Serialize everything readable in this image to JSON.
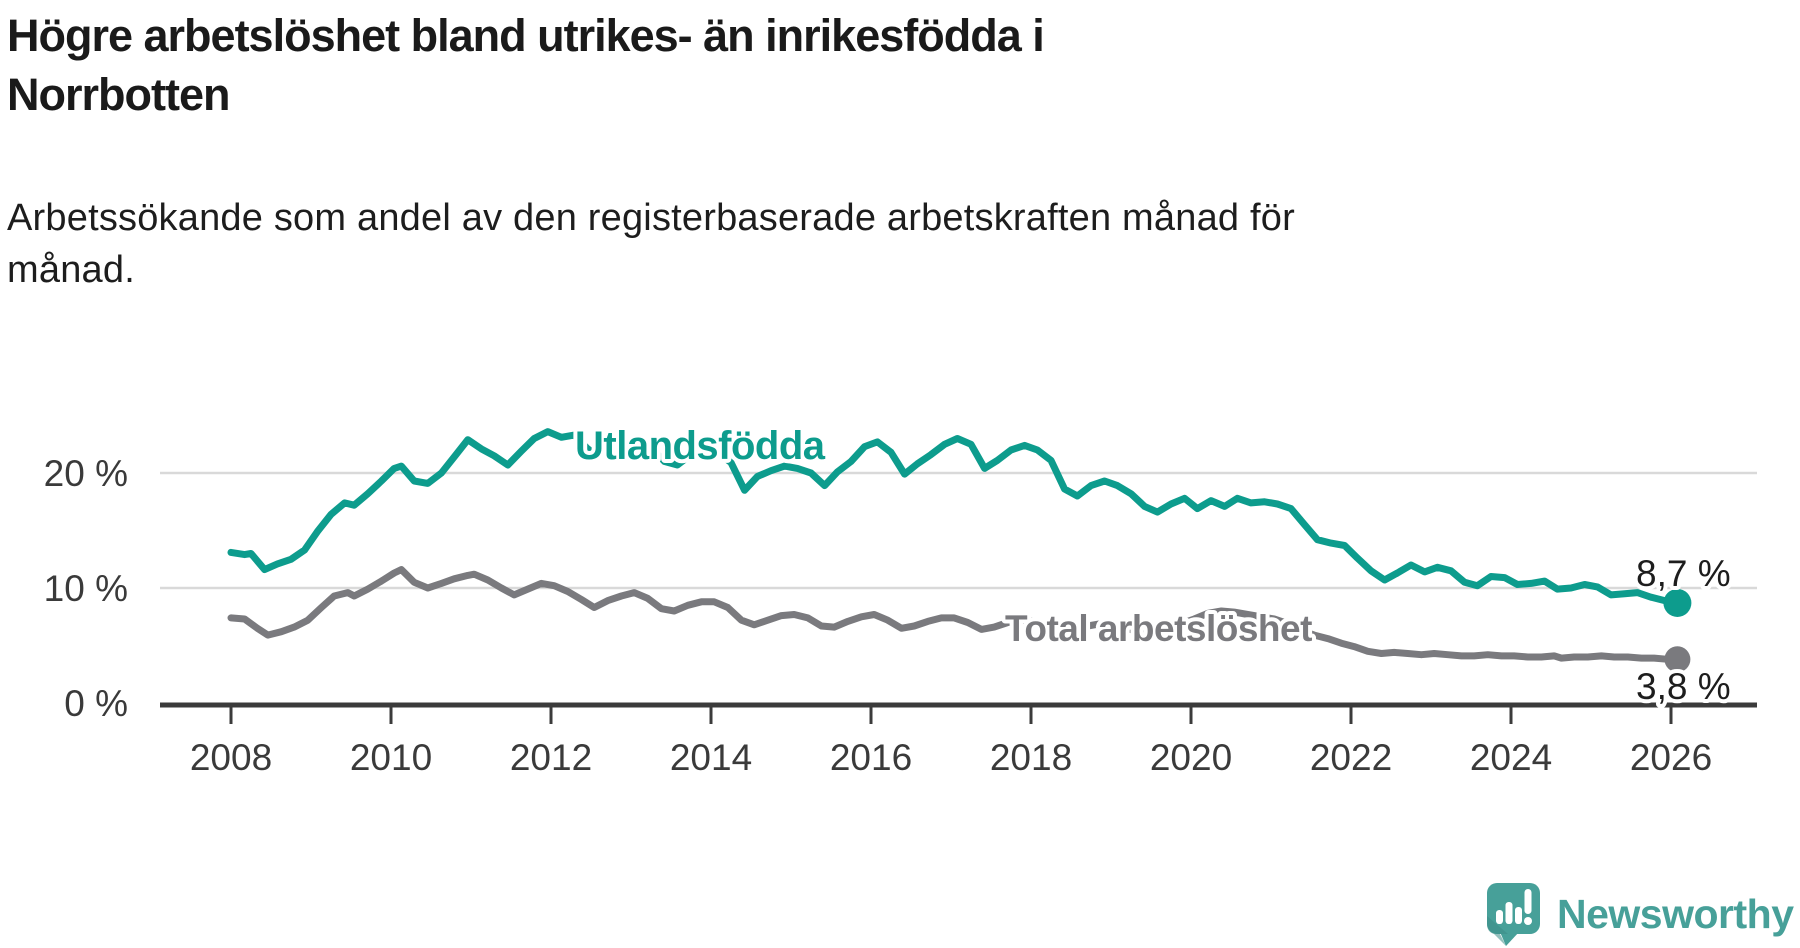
{
  "title": "Högre arbetslöshet bland utrikes- än inrikesfödda i Norrbotten",
  "title_lines": [
    "Högre arbetslöshet bland utrikes- än inrikesfödda i",
    "Norrbotten"
  ],
  "subtitle": "Arbetssökande som andel av den registerbaserade arbetskraften månad för månad.",
  "subtitle_lines": [
    "Arbetssökande som andel av den registerbaserade arbetskraften månad för",
    "månad."
  ],
  "branding": {
    "name": "Newsworthy",
    "logo_icon": "bar-chart-speech-bubble",
    "logo_color": "#47a099",
    "logo_shade_color": "#3d8c86"
  },
  "colors": {
    "grid": "#d9d9d9",
    "axis": "#3b3b3b",
    "axis_text": "#3a3a3a",
    "text": "#1d1d1d"
  },
  "chart_data": {
    "type": "line",
    "title": "Högre arbetslöshet bland utrikes- än inrikesfödda i Norrbotten",
    "xlabel": "",
    "ylabel": "",
    "unit": "%",
    "grid": "horizontal",
    "legend_position": "inline-labels",
    "xlim": [
      2007.1,
      2027.1
    ],
    "ylim": [
      0,
      30
    ],
    "x_ticks": [
      2008,
      2010,
      2012,
      2014,
      2016,
      2018,
      2020,
      2022,
      2024,
      2026
    ],
    "y_ticks": [
      {
        "v": 0,
        "label": "0 %"
      },
      {
        "v": 10,
        "label": "10 %"
      },
      {
        "v": 20,
        "label": "20 %"
      }
    ],
    "series": [
      {
        "id": "utlandsfodda",
        "name": "Utlandsfödda",
        "color": "#0d9c8d",
        "end_label": "8,7 %",
        "end_value": 8.7,
        "points": [
          [
            2008.0,
            13.1
          ],
          [
            2008.17,
            12.9
          ],
          [
            2008.25,
            13.0
          ],
          [
            2008.42,
            11.6
          ],
          [
            2008.58,
            12.1
          ],
          [
            2008.75,
            12.5
          ],
          [
            2008.92,
            13.3
          ],
          [
            2009.08,
            14.9
          ],
          [
            2009.25,
            16.4
          ],
          [
            2009.42,
            17.4
          ],
          [
            2009.54,
            17.2
          ],
          [
            2009.71,
            18.2
          ],
          [
            2009.88,
            19.3
          ],
          [
            2010.04,
            20.4
          ],
          [
            2010.13,
            20.6
          ],
          [
            2010.29,
            19.3
          ],
          [
            2010.46,
            19.1
          ],
          [
            2010.63,
            20.0
          ],
          [
            2010.79,
            21.4
          ],
          [
            2010.96,
            22.9
          ],
          [
            2011.13,
            22.1
          ],
          [
            2011.29,
            21.5
          ],
          [
            2011.46,
            20.7
          ],
          [
            2011.63,
            21.9
          ],
          [
            2011.79,
            23.0
          ],
          [
            2011.96,
            23.6
          ],
          [
            2012.13,
            23.1
          ],
          [
            2012.29,
            23.3
          ],
          [
            2012.46,
            22.1
          ],
          [
            2012.58,
            21.5
          ],
          [
            2012.75,
            22.2
          ],
          [
            2012.92,
            22.7
          ],
          [
            2013.08,
            22.7
          ],
          [
            2013.25,
            22.2
          ],
          [
            2013.42,
            21.0
          ],
          [
            2013.58,
            20.7
          ],
          [
            2013.75,
            21.6
          ],
          [
            2013.92,
            22.0
          ],
          [
            2014.08,
            21.8
          ],
          [
            2014.25,
            20.9
          ],
          [
            2014.42,
            18.5
          ],
          [
            2014.58,
            19.7
          ],
          [
            2014.75,
            20.2
          ],
          [
            2014.92,
            20.6
          ],
          [
            2015.08,
            20.4
          ],
          [
            2015.25,
            20.0
          ],
          [
            2015.42,
            18.9
          ],
          [
            2015.58,
            20.1
          ],
          [
            2015.75,
            21.0
          ],
          [
            2015.92,
            22.3
          ],
          [
            2016.08,
            22.7
          ],
          [
            2016.25,
            21.8
          ],
          [
            2016.42,
            19.9
          ],
          [
            2016.58,
            20.8
          ],
          [
            2016.75,
            21.6
          ],
          [
            2016.92,
            22.5
          ],
          [
            2017.08,
            23.0
          ],
          [
            2017.25,
            22.5
          ],
          [
            2017.42,
            20.4
          ],
          [
            2017.58,
            21.1
          ],
          [
            2017.75,
            22.0
          ],
          [
            2017.92,
            22.4
          ],
          [
            2018.08,
            22.0
          ],
          [
            2018.25,
            21.1
          ],
          [
            2018.42,
            18.6
          ],
          [
            2018.58,
            18.0
          ],
          [
            2018.75,
            18.9
          ],
          [
            2018.92,
            19.3
          ],
          [
            2019.08,
            18.9
          ],
          [
            2019.25,
            18.2
          ],
          [
            2019.42,
            17.1
          ],
          [
            2019.58,
            16.6
          ],
          [
            2019.75,
            17.3
          ],
          [
            2019.92,
            17.8
          ],
          [
            2020.08,
            16.9
          ],
          [
            2020.25,
            17.6
          ],
          [
            2020.42,
            17.1
          ],
          [
            2020.58,
            17.8
          ],
          [
            2020.75,
            17.4
          ],
          [
            2020.92,
            17.5
          ],
          [
            2021.08,
            17.3
          ],
          [
            2021.25,
            16.9
          ],
          [
            2021.42,
            15.5
          ],
          [
            2021.58,
            14.2
          ],
          [
            2021.75,
            13.9
          ],
          [
            2021.92,
            13.7
          ],
          [
            2022.08,
            12.6
          ],
          [
            2022.25,
            11.5
          ],
          [
            2022.42,
            10.7
          ],
          [
            2022.58,
            11.3
          ],
          [
            2022.75,
            12.0
          ],
          [
            2022.92,
            11.4
          ],
          [
            2023.08,
            11.8
          ],
          [
            2023.25,
            11.5
          ],
          [
            2023.42,
            10.5
          ],
          [
            2023.58,
            10.2
          ],
          [
            2023.75,
            11.0
          ],
          [
            2023.92,
            10.9
          ],
          [
            2024.08,
            10.3
          ],
          [
            2024.25,
            10.4
          ],
          [
            2024.42,
            10.6
          ],
          [
            2024.58,
            9.9
          ],
          [
            2024.75,
            10.0
          ],
          [
            2024.92,
            10.3
          ],
          [
            2025.08,
            10.1
          ],
          [
            2025.25,
            9.4
          ],
          [
            2025.42,
            9.5
          ],
          [
            2025.58,
            9.6
          ],
          [
            2025.75,
            9.2
          ],
          [
            2025.92,
            8.9
          ],
          [
            2026.08,
            8.7
          ]
        ]
      },
      {
        "id": "total-arbetsloshet",
        "name": "Total arbetslöshet",
        "color": "#7a7a7e",
        "end_label": "3,8 %",
        "end_value": 3.8,
        "points": [
          [
            2008.0,
            7.4
          ],
          [
            2008.17,
            7.3
          ],
          [
            2008.33,
            6.5
          ],
          [
            2008.46,
            5.9
          ],
          [
            2008.63,
            6.2
          ],
          [
            2008.79,
            6.6
          ],
          [
            2008.96,
            7.2
          ],
          [
            2009.13,
            8.3
          ],
          [
            2009.29,
            9.3
          ],
          [
            2009.46,
            9.6
          ],
          [
            2009.54,
            9.3
          ],
          [
            2009.71,
            9.9
          ],
          [
            2009.88,
            10.6
          ],
          [
            2010.04,
            11.3
          ],
          [
            2010.13,
            11.6
          ],
          [
            2010.29,
            10.5
          ],
          [
            2010.46,
            10.0
          ],
          [
            2010.63,
            10.4
          ],
          [
            2010.79,
            10.8
          ],
          [
            2010.96,
            11.1
          ],
          [
            2011.04,
            11.2
          ],
          [
            2011.21,
            10.7
          ],
          [
            2011.38,
            10.0
          ],
          [
            2011.54,
            9.4
          ],
          [
            2011.71,
            9.9
          ],
          [
            2011.88,
            10.4
          ],
          [
            2012.04,
            10.2
          ],
          [
            2012.21,
            9.7
          ],
          [
            2012.38,
            9.0
          ],
          [
            2012.54,
            8.3
          ],
          [
            2012.71,
            8.9
          ],
          [
            2012.88,
            9.3
          ],
          [
            2013.04,
            9.6
          ],
          [
            2013.21,
            9.1
          ],
          [
            2013.38,
            8.2
          ],
          [
            2013.54,
            8.0
          ],
          [
            2013.71,
            8.5
          ],
          [
            2013.88,
            8.8
          ],
          [
            2014.04,
            8.8
          ],
          [
            2014.21,
            8.3
          ],
          [
            2014.38,
            7.2
          ],
          [
            2014.54,
            6.8
          ],
          [
            2014.71,
            7.2
          ],
          [
            2014.88,
            7.6
          ],
          [
            2015.04,
            7.7
          ],
          [
            2015.21,
            7.4
          ],
          [
            2015.38,
            6.7
          ],
          [
            2015.54,
            6.6
          ],
          [
            2015.71,
            7.1
          ],
          [
            2015.88,
            7.5
          ],
          [
            2016.04,
            7.7
          ],
          [
            2016.21,
            7.2
          ],
          [
            2016.38,
            6.5
          ],
          [
            2016.54,
            6.7
          ],
          [
            2016.71,
            7.1
          ],
          [
            2016.88,
            7.4
          ],
          [
            2017.04,
            7.4
          ],
          [
            2017.21,
            7.0
          ],
          [
            2017.38,
            6.4
          ],
          [
            2017.54,
            6.6
          ],
          [
            2017.71,
            7.0
          ],
          [
            2017.88,
            7.2
          ],
          [
            2018.04,
            7.1
          ],
          [
            2018.21,
            6.7
          ],
          [
            2018.38,
            6.1
          ],
          [
            2018.54,
            6.3
          ],
          [
            2018.71,
            6.7
          ],
          [
            2018.88,
            6.9
          ],
          [
            2019.04,
            6.9
          ],
          [
            2019.21,
            6.5
          ],
          [
            2019.38,
            6.0
          ],
          [
            2019.54,
            6.2
          ],
          [
            2019.71,
            6.6
          ],
          [
            2019.88,
            6.9
          ],
          [
            2020.04,
            7.3
          ],
          [
            2020.21,
            7.8
          ],
          [
            2020.38,
            8.0
          ],
          [
            2020.54,
            7.9
          ],
          [
            2020.71,
            7.7
          ],
          [
            2020.88,
            7.5
          ],
          [
            2021.04,
            7.3
          ],
          [
            2021.21,
            6.9
          ],
          [
            2021.38,
            6.3
          ],
          [
            2021.54,
            5.9
          ],
          [
            2021.71,
            5.6
          ],
          [
            2021.88,
            5.2
          ],
          [
            2022.04,
            4.9
          ],
          [
            2022.21,
            4.5
          ],
          [
            2022.38,
            4.3
          ],
          [
            2022.54,
            4.4
          ],
          [
            2022.71,
            4.3
          ],
          [
            2022.88,
            4.2
          ],
          [
            2023.04,
            4.3
          ],
          [
            2023.21,
            4.2
          ],
          [
            2023.38,
            4.1
          ],
          [
            2023.54,
            4.1
          ],
          [
            2023.71,
            4.2
          ],
          [
            2023.88,
            4.1
          ],
          [
            2024.04,
            4.1
          ],
          [
            2024.21,
            4.0
          ],
          [
            2024.38,
            4.0
          ],
          [
            2024.54,
            4.1
          ],
          [
            2024.63,
            3.9
          ],
          [
            2024.79,
            4.0
          ],
          [
            2024.96,
            4.0
          ],
          [
            2025.13,
            4.1
          ],
          [
            2025.29,
            4.0
          ],
          [
            2025.46,
            4.0
          ],
          [
            2025.63,
            3.9
          ],
          [
            2025.79,
            3.9
          ],
          [
            2025.96,
            3.8
          ],
          [
            2026.08,
            3.8
          ]
        ]
      }
    ]
  }
}
